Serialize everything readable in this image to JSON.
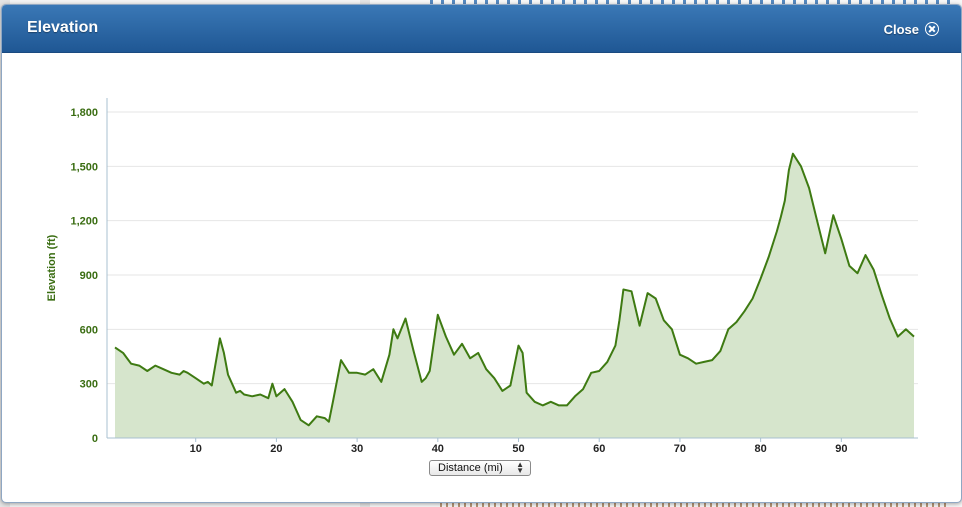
{
  "dialog": {
    "title": "Elevation",
    "close_label": "Close",
    "close_icon": "close-circle-icon"
  },
  "axis_control": {
    "selected": "Distance (mi)",
    "icon": "updown-arrows-icon"
  },
  "colors": {
    "header": "#2a66a6",
    "line": "#3e7a12",
    "fill": "#d6e5cc",
    "tick_text": "#3a6d12"
  },
  "chart_data": {
    "type": "area",
    "ylabel": "Elevation (ft)",
    "xlabel": "",
    "xlim": [
      0,
      99.5
    ],
    "ylim": [
      0,
      1800
    ],
    "x_ticks": [
      10,
      20,
      30,
      40,
      50,
      60,
      70,
      80,
      90
    ],
    "y_ticks": [
      0,
      300,
      600,
      900,
      1200,
      1500,
      1800
    ],
    "y_tick_labels": [
      "0",
      "300",
      "600",
      "900",
      "1,200",
      "1,500",
      "1,800"
    ],
    "grid": true,
    "x": [
      0,
      1,
      2,
      3,
      4,
      5,
      6,
      7,
      8,
      8.5,
      9,
      10,
      11,
      11.5,
      12,
      13,
      13.5,
      14,
      15,
      15.5,
      16,
      17,
      18,
      19,
      19.5,
      20,
      21,
      22,
      23,
      24,
      25,
      26,
      26.5,
      27,
      28,
      29,
      30,
      31,
      32,
      33,
      34,
      34.5,
      35,
      36,
      37,
      38,
      38.5,
      39,
      40,
      41,
      42,
      43,
      44,
      45,
      46,
      47,
      48,
      49,
      50,
      50.5,
      51,
      52,
      53,
      54,
      55,
      56,
      57,
      58,
      59,
      60,
      61,
      62,
      62.5,
      63,
      64,
      65,
      66,
      67,
      68,
      69,
      70,
      71,
      72,
      73,
      74,
      75,
      76,
      77,
      78,
      79,
      80,
      81,
      82,
      82.5,
      83,
      83.5,
      84,
      85,
      86,
      87,
      88,
      89,
      90,
      91,
      92,
      93,
      94,
      95,
      96,
      97,
      98,
      99
    ],
    "y": [
      500,
      470,
      410,
      400,
      370,
      400,
      380,
      360,
      350,
      370,
      360,
      330,
      300,
      310,
      290,
      550,
      470,
      350,
      250,
      260,
      240,
      230,
      240,
      220,
      300,
      230,
      270,
      200,
      100,
      70,
      120,
      110,
      90,
      200,
      430,
      360,
      360,
      350,
      380,
      310,
      460,
      600,
      550,
      660,
      480,
      310,
      330,
      370,
      680,
      560,
      460,
      520,
      440,
      470,
      380,
      330,
      260,
      290,
      510,
      470,
      250,
      200,
      180,
      200,
      180,
      180,
      230,
      270,
      360,
      370,
      420,
      510,
      650,
      820,
      810,
      620,
      800,
      770,
      650,
      600,
      460,
      440,
      410,
      420,
      430,
      480,
      600,
      640,
      700,
      770,
      880,
      1000,
      1140,
      1220,
      1310,
      1480,
      1570,
      1500,
      1380,
      1200,
      1020,
      1230,
      1100,
      950,
      910,
      1010,
      930,
      790,
      660,
      560,
      600,
      560
    ]
  }
}
